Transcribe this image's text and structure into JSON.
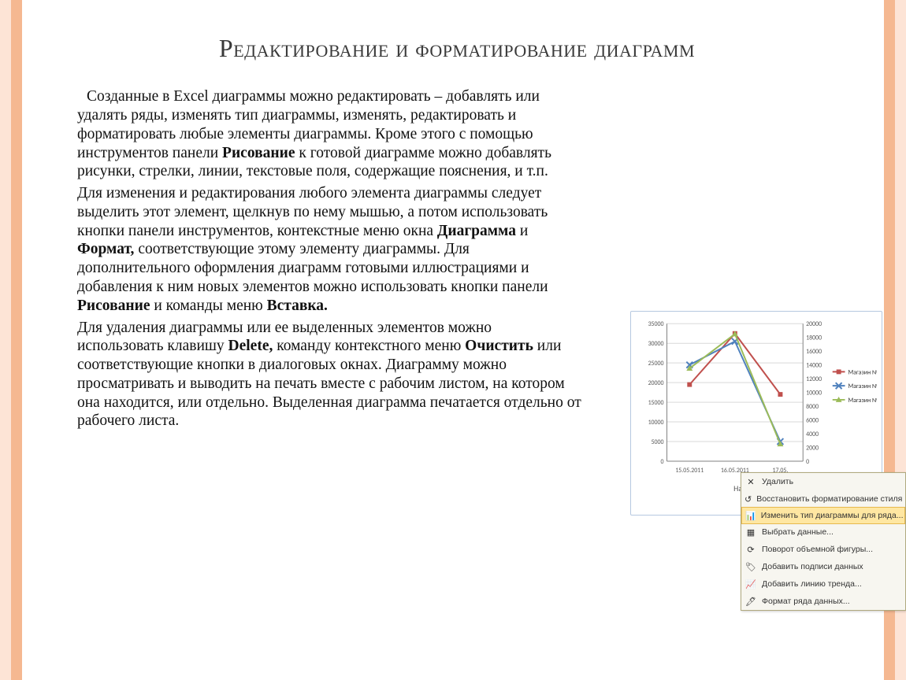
{
  "decor": {
    "stripe_light": "#fde4d6",
    "stripe_dark": "#f5b891"
  },
  "title": "Редактирование и форматирование диаграмм",
  "paragraphs": {
    "p1_a": "Созданные в Excel диаграммы можно редактировать – добавлять или удалять ряды, изменять тип диаграммы, изменять, редактировать и форматировать любые элементы диаграммы. Кроме этого с помощью инструментов панели ",
    "p1_b": "Рисование",
    "p1_c": " к готовой диаграмме можно добавлять рисунки, стрелки, линии, текстовые поля, содержащие пояснения, и т.п.",
    "p2_a": "Для изменения и редактирования любого элемента диаграммы следует выделить этот элемент, щелкнув по нему мышью, а потом использовать кнопки панели инструментов, контекстные меню окна ",
    "p2_b": "Диаграмма",
    "p2_c": " и ",
    "p2_d": "Формат,",
    "p2_e": " соответствующие этому элементу диаграммы. Для дополнительного оформления диаграмм готовыми иллюстрациями и добавления к ним новых элементов можно использовать кнопки панели ",
    "p2_f": "Рисование",
    "p2_g": " и команды меню ",
    "p2_h": "Вставка.",
    "p3_a": "Для удаления диаграммы или ее выделенных элементов можно использовать клавишу ",
    "p3_b": "Delete,",
    "p3_c": " команду контекстного меню ",
    "p3_d": "Очистить",
    "p3_e": " или соответствующие кнопки в диалоговых окнах. Диаграмму можно просматривать и выводить на печать вместе с рабочим листом, на котором она находится, или отдельно. Выделенная диаграмма печатается отдельно от рабочего листа."
  },
  "chart": {
    "type": "line",
    "left_axis": {
      "min": 0,
      "max": 35000,
      "step": 5000
    },
    "right_axis": {
      "min": 0,
      "max": 20000,
      "step": 2000
    },
    "x_labels": [
      "15.05.2011",
      "16.05.2011",
      "17.05."
    ],
    "axis_title": "Название оси",
    "grid_color": "#d9d9d9",
    "axis_color": "#808080",
    "tick_font_size": 8,
    "series": [
      {
        "name": "Магазин №2",
        "color": "#c0504d",
        "marker": "square",
        "values_left": [
          19500,
          32500,
          17000
        ]
      },
      {
        "name": "Магазин №1",
        "color": "#4f81bd",
        "marker": "x",
        "values_left": [
          24500,
          30500,
          5000
        ]
      },
      {
        "name": "Магазин №3",
        "color": "#9bbb59",
        "marker": "triangle",
        "values_right": [
          13500,
          18500,
          2500
        ]
      }
    ],
    "legend_font_size": 8
  },
  "context_menu": {
    "items": [
      {
        "icon": "delete-icon",
        "label": "Удалить"
      },
      {
        "icon": "reset-icon",
        "label": "Восстановить форматирование стиля"
      },
      {
        "icon": "chart-icon",
        "label": "Изменить тип диаграммы для ряда...",
        "highlight": true
      },
      {
        "icon": "select-icon",
        "label": "Выбрать данные..."
      },
      {
        "icon": "rotate3d-icon",
        "label": "Поворот объемной фигуры..."
      },
      {
        "icon": "labels-icon",
        "label": "Добавить подписи данных"
      },
      {
        "icon": "trend-icon",
        "label": "Добавить линию тренда..."
      },
      {
        "icon": "format-icon",
        "label": "Формат ряда данных..."
      }
    ]
  }
}
